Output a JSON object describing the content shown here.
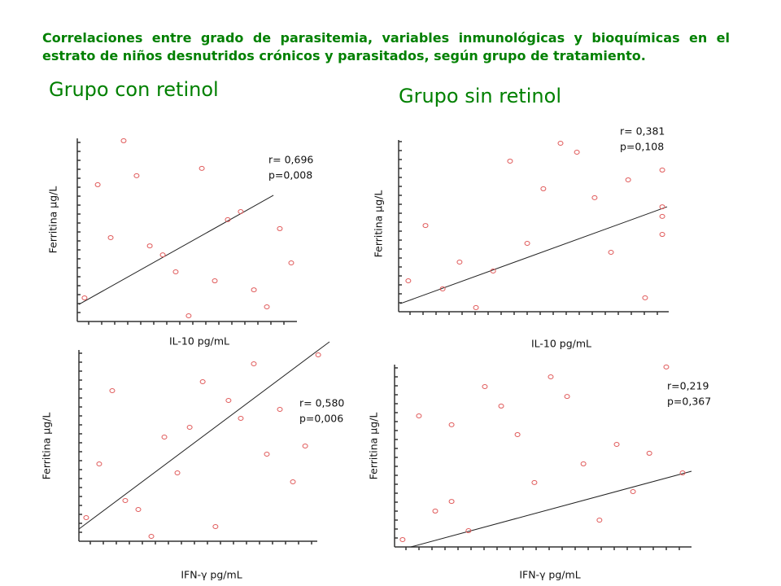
{
  "title": "Correlaciones entre grado de parasitemia, variables inmunológicas y bioquímicas en el estrato de niños desnutridos crónicos y parasitados, según grupo de tratamiento.",
  "groups": [
    "Grupo con retinol",
    "Grupo sin retinol"
  ],
  "chart_data": [
    {
      "type": "scatter",
      "xlabel": "IL-10 pg/mL",
      "ylabel": "Ferritina µg/L",
      "color": "#e05a5a",
      "xlim": [
        0,
        100
      ],
      "ylim": [
        0,
        100
      ],
      "annotations": [
        "r= 0,696",
        "p=0,008"
      ],
      "x": [
        3.3,
        9.3,
        21.1,
        15.2,
        27.0,
        33.0,
        38.9,
        44.8,
        50.7,
        56.7,
        62.6,
        68.5,
        74.4,
        80.4,
        86.3,
        92.2,
        97.4
      ],
      "y": [
        12.9,
        74.7,
        98.7,
        45.8,
        79.6,
        41.3,
        36.4,
        27.1,
        3.1,
        83.6,
        22.2,
        55.6,
        60.0,
        17.3,
        8.0,
        50.7,
        32.0
      ],
      "fit": {
        "x": [
          0.7,
          89.3
        ],
        "y": [
          9.3,
          68.9
        ]
      }
    },
    {
      "type": "scatter",
      "xlabel": "IL-10 pg/mL",
      "ylabel": "Ferritina µg/L",
      "color": "#e05a5a",
      "xlim": [
        0,
        100
      ],
      "ylim": [
        0,
        100
      ],
      "annotations": [
        "r= 0,381",
        "p=0,108"
      ],
      "x": [
        3.6,
        10.0,
        16.4,
        22.7,
        28.8,
        35.2,
        41.5,
        47.9,
        53.9,
        60.3,
        66.4,
        73.0,
        79.1,
        85.5,
        91.8,
        98.2,
        98.2,
        98.2,
        98.2
      ],
      "y": [
        18.0,
        50.2,
        13.3,
        28.9,
        2.4,
        23.7,
        87.7,
        39.8,
        71.6,
        98.1,
        92.9,
        66.4,
        34.6,
        76.8,
        8.1,
        82.5,
        61.1,
        55.5,
        45.0
      ],
      "fit": {
        "x": [
          0.6,
          100
        ],
        "y": [
          4.7,
          61.1
        ]
      }
    },
    {
      "type": "scatter",
      "xlabel": "IFN-γ pg/mL",
      "ylabel": "Ferritina µg/L",
      "color": "#e05a5a",
      "xlim": [
        0,
        100
      ],
      "ylim": [
        0,
        100
      ],
      "annotations": [
        "r= 0,580",
        "p=0,006"
      ],
      "x": [
        2.9,
        8.1,
        13.3,
        18.5,
        23.7,
        28.9,
        34.1,
        39.3,
        44.2,
        49.4,
        54.5,
        59.7,
        64.6,
        69.8,
        75.0,
        80.2,
        85.4,
        90.3,
        95.5
      ],
      "y": [
        11.6,
        38.0,
        74.0,
        20.0,
        15.6,
        2.4,
        51.2,
        33.6,
        56.0,
        78.4,
        7.2,
        69.2,
        60.4,
        87.2,
        42.8,
        64.8,
        29.2,
        46.8,
        91.6
      ],
      "fit": {
        "x": [
          0,
          100
        ],
        "y": [
          6.0,
          98.0
        ]
      }
    },
    {
      "type": "scatter",
      "xlabel": "IFN-γ pg/mL",
      "ylabel": "Ferritina µg/L",
      "color": "#e05a5a",
      "xlim": [
        0,
        100
      ],
      "ylim": [
        0,
        100
      ],
      "annotations": [
        "r=0,219",
        "p=0,367"
      ],
      "x": [
        2.7,
        8.2,
        13.7,
        19.2,
        19.2,
        24.9,
        30.4,
        35.9,
        41.4,
        47.1,
        52.6,
        58.1,
        63.6,
        69.0,
        74.8,
        80.3,
        85.8,
        91.5,
        97.0
      ],
      "y": [
        3.9,
        69.4,
        19.0,
        64.7,
        24.1,
        8.6,
        84.9,
        74.6,
        59.5,
        34.1,
        90.1,
        79.7,
        44.0,
        14.2,
        54.3,
        29.3,
        49.6,
        95.3,
        39.2
      ],
      "fit": {
        "x": [
          5.5,
          100
        ],
        "y": [
          0,
          40.1
        ]
      }
    }
  ]
}
